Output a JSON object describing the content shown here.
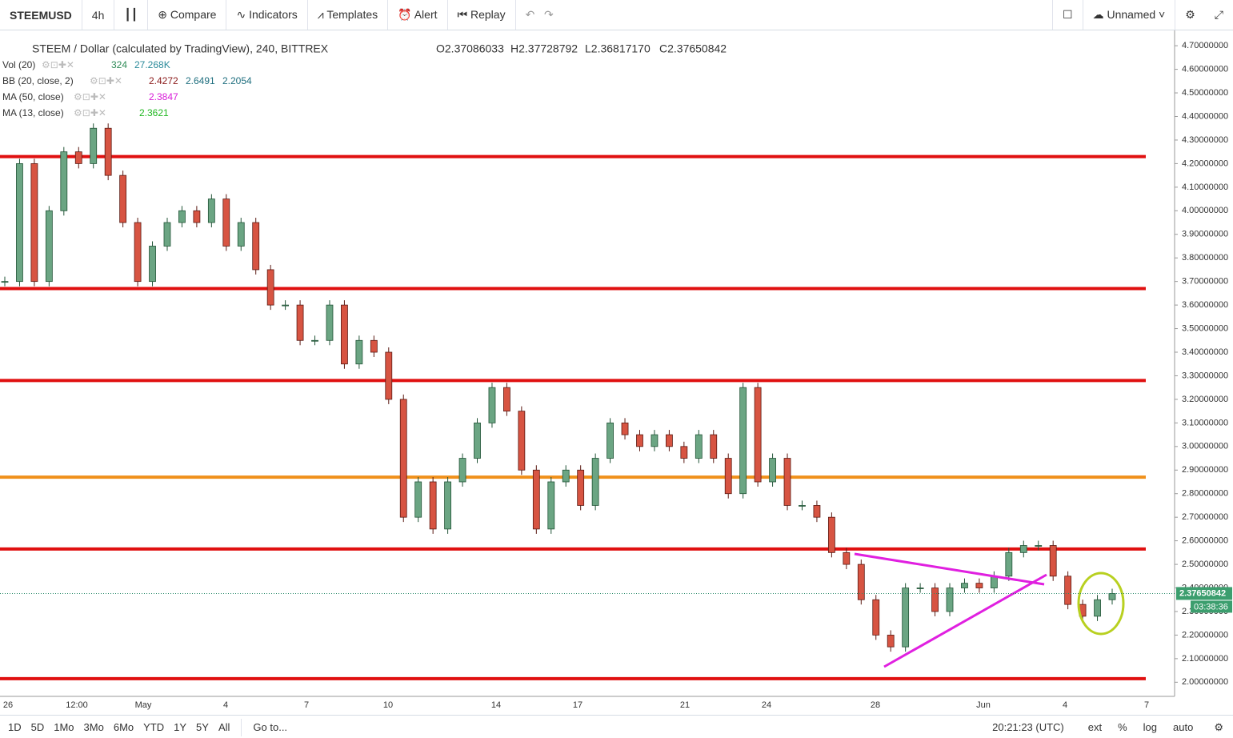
{
  "toolbar": {
    "symbol": "STEEMUSD",
    "interval": "4h",
    "items": [
      "Compare",
      "Indicators",
      "Templates",
      "Alert",
      "Replay"
    ],
    "layout": "Unnamed"
  },
  "legend": {
    "title": "STEEM / Dollar (calculated by TradingView), 240, BITTREX",
    "ohlc": [
      "O2.37086033",
      "H2.37728792",
      "L2.36817170",
      "C2.37650842"
    ],
    "indicators": [
      {
        "name": "Vol (20)",
        "values": [
          "324",
          "27.268K"
        ],
        "colors": [
          "#2e8b57",
          "#2a8a9a"
        ]
      },
      {
        "name": "BB (20, close, 2)",
        "values": [
          "2.4272",
          "2.6491",
          "2.2054"
        ],
        "colors": [
          "#8b1a1a",
          "#1f6f7f",
          "#1f6f7f"
        ]
      },
      {
        "name": "MA (50, close)",
        "values": [
          "2.3847"
        ],
        "colors": [
          "#d81bd8"
        ]
      },
      {
        "name": "MA (13, close)",
        "values": [
          "2.3621"
        ],
        "colors": [
          "#22b822"
        ]
      }
    ]
  },
  "price_axis": {
    "ylim": [
      1.94,
      4.765
    ],
    "yticks": [
      {
        "value": 2.0,
        "label": "2.00000000"
      },
      {
        "value": 2.1,
        "label": "2.10000000"
      },
      {
        "value": 2.2,
        "label": "2.20000000"
      },
      {
        "value": 2.3,
        "label": "2.30000000"
      },
      {
        "value": 2.4,
        "label": "2.40000000"
      },
      {
        "value": 2.5,
        "label": "2.50000000"
      },
      {
        "value": 2.6,
        "label": "2.60000000"
      },
      {
        "value": 2.7,
        "label": "2.70000000"
      },
      {
        "value": 2.8,
        "label": "2.80000000"
      },
      {
        "value": 2.9,
        "label": "2.90000000"
      },
      {
        "value": 3.0,
        "label": "3.00000000"
      },
      {
        "value": 3.1,
        "label": "3.10000000"
      },
      {
        "value": 3.2,
        "label": "3.20000000"
      },
      {
        "value": 3.3,
        "label": "3.30000000"
      },
      {
        "value": 3.4,
        "label": "3.40000000"
      },
      {
        "value": 3.5,
        "label": "3.50000000"
      },
      {
        "value": 3.6,
        "label": "3.60000000"
      },
      {
        "value": 3.7,
        "label": "3.70000000"
      },
      {
        "value": 3.8,
        "label": "3.80000000"
      },
      {
        "value": 3.9,
        "label": "3.90000000"
      },
      {
        "value": 4.0,
        "label": "4.00000000"
      },
      {
        "value": 4.1,
        "label": "4.10000000"
      },
      {
        "value": 4.2,
        "label": "4.20000000"
      },
      {
        "value": 4.3,
        "label": "4.30000000"
      },
      {
        "value": 4.4,
        "label": "4.40000000"
      },
      {
        "value": 4.5,
        "label": "4.50000000"
      },
      {
        "value": 4.6,
        "label": "4.60000000"
      },
      {
        "value": 4.7,
        "label": "4.70000000"
      }
    ],
    "current_price": {
      "value": 2.37650842,
      "label": "2.37650842"
    },
    "countdown": "03:38:36"
  },
  "levels": [
    {
      "value": 4.23,
      "color": "#e01010"
    },
    {
      "value": 3.67,
      "color": "#e01010"
    },
    {
      "value": 3.28,
      "color": "#e01010"
    },
    {
      "value": 2.87,
      "color": "#f0901a"
    },
    {
      "value": 2.565,
      "color": "#e01010"
    },
    {
      "value": 2.015,
      "color": "#e01010"
    }
  ],
  "time_axis": [
    "26",
    "12:00",
    "May",
    "4",
    "7",
    "10",
    "14",
    "17",
    "21",
    "24",
    "28",
    "Jun",
    "4",
    "7"
  ],
  "candles": {
    "up_color": "#6ba583",
    "down_color": "#d75442",
    "closes": [
      3.7,
      4.2,
      3.7,
      4.0,
      4.25,
      4.2,
      4.35,
      4.15,
      3.95,
      3.7,
      3.85,
      3.95,
      4.0,
      3.95,
      4.05,
      3.85,
      3.95,
      3.75,
      3.6,
      3.6,
      3.45,
      3.45,
      3.6,
      3.35,
      3.45,
      3.4,
      3.2,
      2.7,
      2.85,
      2.65,
      2.85,
      2.95,
      3.1,
      3.25,
      3.15,
      2.9,
      2.65,
      2.85,
      2.9,
      2.75,
      2.95,
      3.1,
      3.05,
      3.0,
      3.05,
      3.0,
      2.95,
      3.05,
      2.95,
      2.8,
      3.25,
      2.85,
      2.95,
      2.75,
      2.75,
      2.7,
      2.55,
      2.5,
      2.35,
      2.2,
      2.15,
      2.4,
      2.4,
      2.3,
      2.4,
      2.42,
      2.4,
      2.45,
      2.55,
      2.58,
      2.58,
      2.45,
      2.33,
      2.28,
      2.35,
      2.3765
    ]
  },
  "bottom_bar": {
    "ranges": [
      "1D",
      "5D",
      "1Mo",
      "3Mo",
      "6Mo",
      "YTD",
      "1Y",
      "5Y",
      "All"
    ],
    "goto": "Go to...",
    "time": "20:21:23 (UTC)",
    "options": [
      "ext",
      "%",
      "log",
      "auto"
    ]
  }
}
